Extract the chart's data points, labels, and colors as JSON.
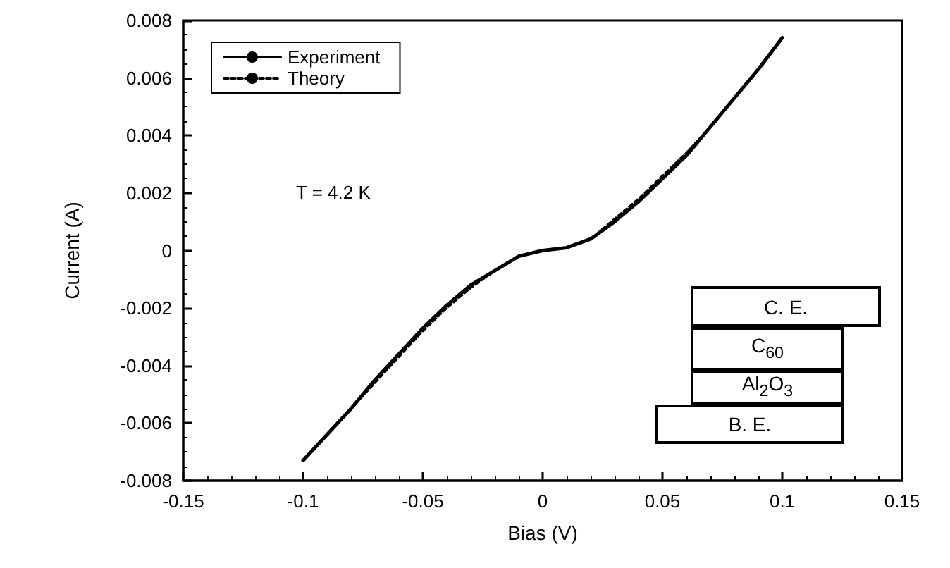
{
  "chart_data": {
    "type": "line",
    "xlabel": "Bias (V)",
    "ylabel": "Current (A)",
    "x": [
      -0.1,
      -0.09,
      -0.08,
      -0.07,
      -0.06,
      -0.05,
      -0.04,
      -0.03,
      -0.02,
      -0.01,
      0,
      0.01,
      0.02,
      0.03,
      0.04,
      0.05,
      0.06,
      0.07,
      0.08,
      0.09,
      0.1
    ],
    "series": [
      {
        "name": "Experiment",
        "color": "#000000",
        "line_style": "solid",
        "values": [
          -0.0073,
          -0.0064,
          -0.0055,
          -0.0045,
          -0.0036,
          -0.0027,
          -0.0019,
          -0.0012,
          -0.0007,
          -0.0002,
          0,
          0.0001,
          0.0004,
          0.001,
          0.0017,
          0.0025,
          0.0033,
          0.0043,
          0.0053,
          0.0063,
          0.0074
        ]
      },
      {
        "name": "Theory",
        "color": "#000000",
        "line_style": "dashed",
        "values": [
          -0.0073,
          -0.0064,
          -0.0055,
          -0.0046,
          -0.0037,
          -0.0028,
          -0.002,
          -0.0013,
          -0.0007,
          -0.0002,
          0,
          0.0001,
          0.0004,
          0.0011,
          0.0018,
          0.0026,
          0.0034,
          0.0043,
          0.0053,
          0.0063,
          0.0074
        ]
      }
    ],
    "xlim": [
      -0.15,
      0.15
    ],
    "xticks": [
      -0.15,
      -0.1,
      -0.05,
      0,
      0.05,
      0.1,
      0.15
    ],
    "ylim": [
      -0.008,
      0.008
    ],
    "yticks": [
      -0.008,
      -0.006,
      -0.004,
      -0.002,
      0,
      0.002,
      0.004,
      0.006,
      0.008
    ],
    "grid": false,
    "legend": "top left",
    "marker": "none",
    "annotations": [
      "T = 4.2 K",
      "C. E.",
      "C$_{60}$",
      "Al$_{2}$O$_{3}$",
      "B. E."
    ]
  }
}
